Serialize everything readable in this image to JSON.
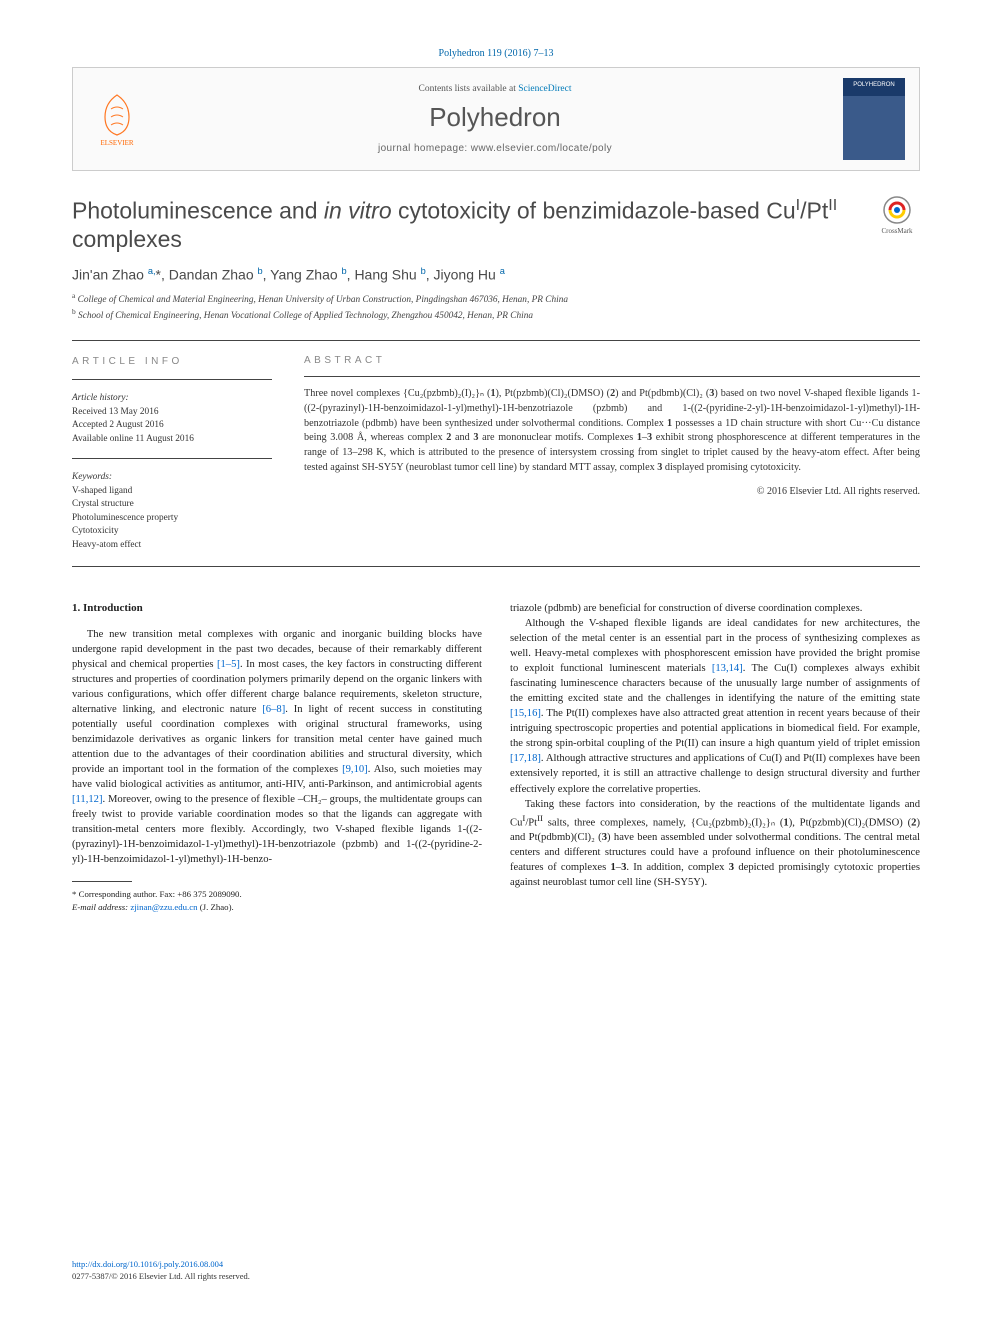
{
  "citation": "Polyhedron 119 (2016) 7–13",
  "header": {
    "contents_prefix": "Contents lists available at ",
    "contents_link": "ScienceDirect",
    "journal": "Polyhedron",
    "homepage": "journal homepage: www.elsevier.com/locate/poly",
    "publisher": "ELSEVIER",
    "cover_label": "POLYHEDRON"
  },
  "title": {
    "part1": "Photoluminescence and ",
    "italic": "in vitro",
    "part2": " cytotoxicity of benzimidazole-based Cu",
    "sup1": "I",
    "part3": "/Pt",
    "sup2": "II",
    "part4": " complexes"
  },
  "crossmark": "CrossMark",
  "authors_html": "Jin'an Zhao <sup>a,</sup>*, Dandan Zhao <sup>b</sup>, Yang Zhao <sup>b</sup>, Hang Shu <sup>b</sup>, Jiyong Hu <sup>a</sup>",
  "affiliations": [
    "a College of Chemical and Material Engineering, Henan University of Urban Construction, Pingdingshan 467036, Henan, PR China",
    "b School of Chemical Engineering, Henan Vocational College of Applied Technology, Zhengzhou 450042, Henan, PR China"
  ],
  "info": {
    "header_left": "ARTICLE INFO",
    "header_right": "ABSTRACT",
    "history_label": "Article history:",
    "history": [
      "Received 13 May 2016",
      "Accepted 2 August 2016",
      "Available online 11 August 2016"
    ],
    "keywords_label": "Keywords:",
    "keywords": [
      "V-shaped ligand",
      "Crystal structure",
      "Photoluminescence property",
      "Cytotoxicity",
      "Heavy-atom effect"
    ]
  },
  "abstract": "Three novel complexes {Cu₂(pzbmb)₂(I)₂}ₙ (1), Pt(pzbmb)(Cl)₂(DMSO) (2) and Pt(pdbmb)(Cl)₂ (3) based on two novel V-shaped flexible ligands 1-((2-(pyrazinyl)-1H-benzoimidazol-1-yl)methyl)-1H-benzotriazole (pzbmb) and 1-((2-(pyridine-2-yl)-1H-benzoimidazol-1-yl)methyl)-1H-benzotriazole (pdbmb) have been synthesized under solvothermal conditions. Complex 1 possesses a 1D chain structure with short Cu···Cu distance being 3.008 Å, whereas complex 2 and 3 are mononuclear motifs. Complexes 1–3 exhibit strong phosphorescence at different temperatures in the range of 13–298 K, which is attributed to the presence of intersystem crossing from singlet to triplet caused by the heavy-atom effect. After being tested against SH-SY5Y (neuroblast tumor cell line) by standard MTT assay, complex 3 displayed promising cytotoxicity.",
  "copyright": "© 2016 Elsevier Ltd. All rights reserved.",
  "section_heading": "1. Introduction",
  "body": {
    "left_p1": "The new transition metal complexes with organic and inorganic building blocks have undergone rapid development in the past two decades, because of their remarkably different physical and chemical properties [1–5]. In most cases, the key factors in constructing different structures and properties of coordination polymers primarily depend on the organic linkers with various configurations, which offer different charge balance requirements, skeleton structure, alternative linking, and electronic nature [6–8]. In light of recent success in constituting potentially useful coordination complexes with original structural frameworks, using benzimidazole derivatives as organic linkers for transition metal center have gained much attention due to the advantages of their coordination abilities and structural diversity, which provide an important tool in the formation of the complexes [9,10]. Also, such moieties may have valid biological activities as antitumor, anti-HIV, anti-Parkinson, and antimicrobial agents [11,12]. Moreover, owing to the presence of flexible –CH₂– groups, the multidentate groups can freely twist to provide variable coordination modes so that the ligands can aggregate with transition-metal centers more flexibly. Accordingly, two V-shaped flexible ligands 1-((2-(pyrazinyl)-1H-benzoimidazol-1-yl)methyl)-1H-benzotriazole (pzbmb) and 1-((2-(pyridine-2-yl)-1H-benzoimidazol-1-yl)methyl)-1H-benzo-",
    "right_p1_cont": "triazole (pdbmb) are beneficial for construction of diverse coordination complexes.",
    "right_p2": "Although the V-shaped flexible ligands are ideal candidates for new architectures, the selection of the metal center is an essential part in the process of synthesizing complexes as well. Heavy-metal complexes with phosphorescent emission have provided the bright promise to exploit functional luminescent materials [13,14]. The Cu(I) complexes always exhibit fascinating luminescence characters because of the unusually large number of assignments of the emitting excited state and the challenges in identifying the nature of the emitting state [15,16]. The Pt(II) complexes have also attracted great attention in recent years because of their intriguing spectroscopic properties and potential applications in biomedical field. For example, the strong spin-orbital coupling of the Pt(II) can insure a high quantum yield of triplet emission [17,18]. Although attractive structures and applications of Cu(I) and Pt(II) complexes have been extensively reported, it is still an attractive challenge to design structural diversity and further effectively explore the correlative properties.",
    "right_p3": "Taking these factors into consideration, by the reactions of the multidentate ligands and CuI/PtII salts, three complexes, namely, {Cu₂(pzbmb)₂(I)₂}ₙ (1), Pt(pzbmb)(Cl)₂(DMSO) (2) and Pt(pdbmb)(Cl)₂ (3) have been assembled under solvothermal conditions. The central metal centers and different structures could have a profound influence on their photoluminescence features of complexes 1–3. In addition, complex 3 depicted promisingly cytotoxic properties against neuroblast tumor cell line (SH-SY5Y)."
  },
  "refs": {
    "r1": "[1–5]",
    "r2": "[6–8]",
    "r3": "[9,10]",
    "r4": "[11,12]",
    "r5": "[13,14]",
    "r6": "[15,16]",
    "r7": "[17,18]"
  },
  "footnote": {
    "line1": "* Corresponding author. Fax: +86 375 2089090.",
    "email_label": "E-mail address: ",
    "email": "zjinan@zzu.edu.cn",
    "email_after": " (J. Zhao)."
  },
  "footer": {
    "doi": "http://dx.doi.org/10.1016/j.poly.2016.08.004",
    "issn": "0277-5387/© 2016 Elsevier Ltd. All rights reserved."
  }
}
